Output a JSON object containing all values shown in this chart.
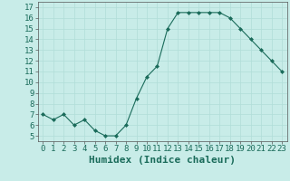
{
  "x": [
    0,
    1,
    2,
    3,
    4,
    5,
    6,
    7,
    8,
    9,
    10,
    11,
    12,
    13,
    14,
    15,
    16,
    17,
    18,
    19,
    20,
    21,
    22,
    23
  ],
  "y": [
    7,
    6.5,
    7,
    6,
    6.5,
    5.5,
    5,
    5,
    6,
    8.5,
    10.5,
    11.5,
    15,
    16.5,
    16.5,
    16.5,
    16.5,
    16.5,
    16,
    15,
    14,
    13,
    12,
    11
  ],
  "xlabel": "Humidex (Indice chaleur)",
  "line_color": "#1a6b5a",
  "marker": "D",
  "marker_size": 2,
  "bg_color": "#c8ece8",
  "grid_color": "#b0ddd8",
  "xlim": [
    -0.5,
    23.5
  ],
  "ylim": [
    4.5,
    17.5
  ],
  "xticks": [
    0,
    1,
    2,
    3,
    4,
    5,
    6,
    7,
    8,
    9,
    10,
    11,
    12,
    13,
    14,
    15,
    16,
    17,
    18,
    19,
    20,
    21,
    22,
    23
  ],
  "yticks": [
    5,
    6,
    7,
    8,
    9,
    10,
    11,
    12,
    13,
    14,
    15,
    16,
    17
  ],
  "tick_fontsize": 6.5,
  "xlabel_fontsize": 8
}
